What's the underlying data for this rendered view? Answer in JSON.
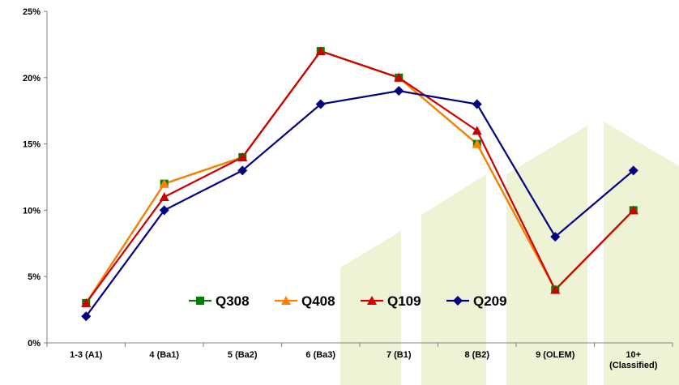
{
  "chart_data": {
    "type": "line",
    "categories": [
      "1-3 (A1)",
      "4 (Ba1)",
      "5 (Ba2)",
      "6 (Ba3)",
      "7 (B1)",
      "8 (B2)",
      "9 (OLEM)",
      "10+|(Classified)"
    ],
    "y_ticks": [
      "0%",
      "5%",
      "10%",
      "15%",
      "20%",
      "25%"
    ],
    "ylim": [
      0,
      25
    ],
    "grid": false,
    "legend_position": "inside-lower-center",
    "series": [
      {
        "name": "Q308",
        "color": "#008000",
        "marker": "square",
        "values": [
          3,
          12,
          14,
          22,
          20,
          15,
          4,
          10
        ]
      },
      {
        "name": "Q408",
        "color": "#FF8000",
        "marker": "triangle",
        "values": [
          3,
          12,
          14,
          22,
          20,
          15,
          4,
          10
        ]
      },
      {
        "name": "Q109",
        "color": "#CC0000",
        "marker": "triangle",
        "values": [
          3,
          11,
          14,
          22,
          20,
          16,
          4,
          10
        ]
      },
      {
        "name": "Q209",
        "color": "#000080",
        "marker": "diamond",
        "values": [
          2,
          10,
          13,
          18,
          19,
          18,
          8,
          13
        ]
      }
    ],
    "watermark_color": "#EEF3D6"
  }
}
